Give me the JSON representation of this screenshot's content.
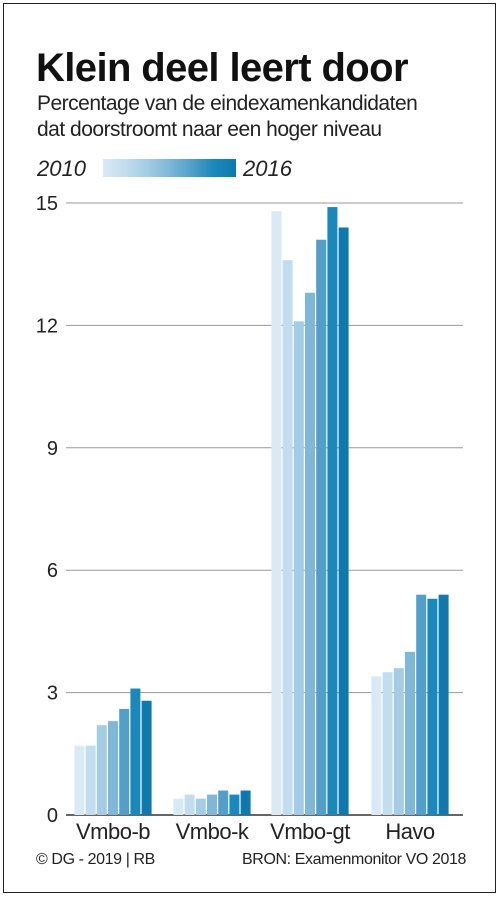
{
  "title": "Klein deel leert door",
  "subtitle_line1": "Percentage van de eindexamenkandidaten",
  "subtitle_line2": "dat doorstroomt naar een hoger niveau",
  "legend": {
    "start": "2010",
    "end": "2016"
  },
  "credit": "© DG - 2019 | RB",
  "source": "BRON: Examenmonitor VO 2018",
  "colors": [
    "#daeaf5",
    "#c2ddee",
    "#a4cce4",
    "#7eb7d7",
    "#52a0c9",
    "#1b88bb",
    "#0f79ad"
  ],
  "chart_data": {
    "type": "bar",
    "categories": [
      "Vmbo-b",
      "Vmbo-k",
      "Vmbo-gt",
      "Havo"
    ],
    "series": [
      {
        "name": "2010",
        "values": [
          1.7,
          0.4,
          14.8,
          3.4
        ]
      },
      {
        "values": [
          1.7,
          0.5,
          13.6,
          3.5
        ]
      },
      {
        "values": [
          2.2,
          0.4,
          12.1,
          3.6
        ]
      },
      {
        "values": [
          2.3,
          0.5,
          12.8,
          4.0
        ]
      },
      {
        "values": [
          2.6,
          0.6,
          14.1,
          5.4
        ]
      },
      {
        "values": [
          3.1,
          0.5,
          14.9,
          5.3
        ]
      },
      {
        "name": "2016",
        "values": [
          2.8,
          0.6,
          14.4,
          5.4
        ]
      }
    ],
    "yticks": [
      "0",
      "3",
      "6",
      "9",
      "12",
      "15"
    ],
    "ylim": [
      0,
      15
    ],
    "grid": true,
    "legend_position": "top-left"
  }
}
